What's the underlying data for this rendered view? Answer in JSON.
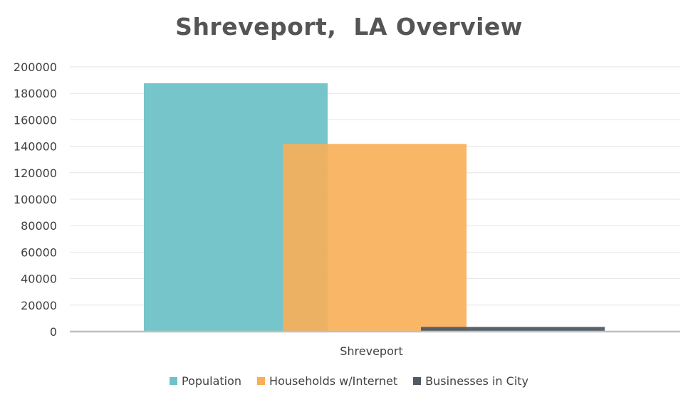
{
  "chart_data": {
    "type": "bar",
    "title": "Shreveport,  LA Overview",
    "categories": [
      "Shreveport"
    ],
    "series": [
      {
        "name": "Population",
        "values": [
          187600
        ],
        "color": "#6FC2C8"
      },
      {
        "name": "Households w/Internet",
        "values": [
          141800
        ],
        "color": "#F9AE57"
      },
      {
        "name": "Businesses in City",
        "values": [
          3500
        ],
        "color": "#4F5B66"
      }
    ],
    "ylim": [
      0,
      200000
    ],
    "yticks": [
      0,
      20000,
      40000,
      60000,
      80000,
      100000,
      120000,
      140000,
      160000,
      180000,
      200000
    ],
    "grid": true,
    "legend": "bottom",
    "overlapping_bars": true
  }
}
